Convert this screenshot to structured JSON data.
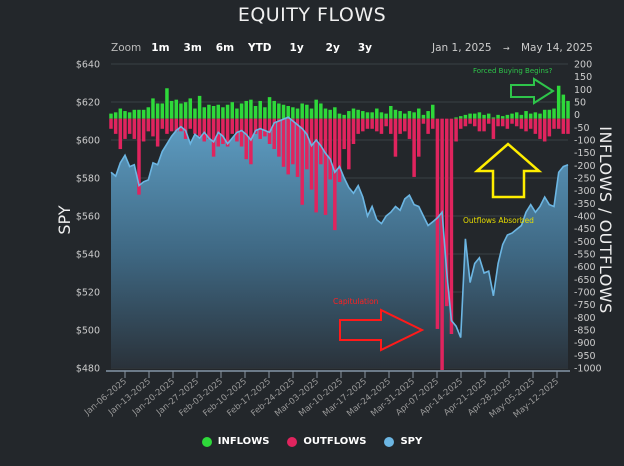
{
  "colors": {
    "inflows": "#2ed93a",
    "outflows": "#e0245e",
    "spy": "#6cb6e3",
    "background": "#23272b",
    "capitulation": "#ff2020",
    "absorbed": "#ffee00",
    "forced": "#2ec44a"
  },
  "toolbar": {
    "zoom_label": "Zoom",
    "buttons": [
      "1m",
      "3m",
      "6m",
      "YTD",
      "1y",
      "2y",
      "3y"
    ],
    "range_from": "Jan 1, 2025",
    "range_arrow": "→",
    "range_to": "May 14, 2025"
  },
  "legend": [
    {
      "label": "INFLOWS"
    },
    {
      "label": "OUTFLOWS"
    },
    {
      "label": "SPY"
    }
  ],
  "annotations": {
    "capitulation": "Capitulation",
    "absorbed": "Outflows Absorbed",
    "forced": "Forced Buying Begins?"
  },
  "chart_data": {
    "type": "bar+area",
    "title": "EQUITY FLOWS",
    "ylabel_left": "SPY",
    "ylabel_right": "INFLOWS / OUTFLOWS",
    "ylim_left": [
      480,
      640
    ],
    "yticks_left": [
      "$640",
      "$620",
      "$600",
      "$580",
      "$560",
      "$540",
      "$520",
      "$500",
      "$480"
    ],
    "ylim_right": [
      -1000,
      200
    ],
    "yticks_right": [
      "200",
      "150",
      "100",
      "50",
      "0",
      "-50",
      "-100",
      "-150",
      "-200",
      "-250",
      "-300",
      "-350",
      "-400",
      "-450",
      "-500",
      "-550",
      "-600",
      "-650",
      "-700",
      "-750",
      "-800",
      "-850",
      "-900",
      "-950",
      "-1000"
    ],
    "xticks": [
      "Jan-06-2025",
      "Jan-13-2025",
      "Jan-20-2025",
      "Jan-27-2025",
      "Feb-03-2025",
      "Feb-10-2025",
      "Feb-17-2025",
      "Feb-24-2025",
      "Mar-03-2025",
      "Mar-10-2025",
      "Mar-17-2025",
      "Mar-24-2025",
      "Mar-31-2025",
      "Apr-07-2025",
      "Apr-14-2025",
      "Apr-21-2025",
      "Apr-28-2025",
      "May-05-2025",
      "May-12-2025"
    ],
    "series": [
      {
        "name": "SPY",
        "values": [
          583,
          581,
          588,
          592,
          586,
          587,
          576,
          578,
          579,
          588,
          587,
          594,
          598,
          602,
          605,
          607,
          605,
          598,
          603,
          601,
          604,
          601,
          599,
          604,
          602,
          598,
          601,
          604,
          605,
          603,
          600,
          605,
          606,
          605,
          604,
          609,
          610,
          611,
          612,
          610,
          608,
          606,
          603,
          597,
          600,
          597,
          593,
          590,
          583,
          586,
          580,
          575,
          572,
          576,
          570,
          560,
          565,
          558,
          556,
          560,
          562,
          565,
          563,
          569,
          571,
          566,
          565,
          560,
          555,
          557,
          559,
          562,
          530,
          505,
          502,
          496,
          548,
          525,
          535,
          538,
          530,
          531,
          518,
          535,
          545,
          550,
          551,
          553,
          555,
          562,
          566,
          562,
          565,
          570,
          566,
          565,
          583,
          586,
          587
        ]
      },
      {
        "name": "INFLOWS",
        "values": [
          20,
          25,
          40,
          30,
          25,
          35,
          35,
          35,
          45,
          80,
          60,
          60,
          120,
          70,
          75,
          60,
          65,
          80,
          40,
          90,
          45,
          55,
          50,
          55,
          45,
          55,
          65,
          40,
          60,
          70,
          75,
          50,
          70,
          45,
          85,
          70,
          60,
          55,
          50,
          45,
          40,
          60,
          55,
          40,
          75,
          60,
          40,
          35,
          45,
          20,
          15,
          30,
          40,
          35,
          30,
          25,
          25,
          40,
          25,
          20,
          50,
          35,
          30,
          20,
          30,
          25,
          40,
          15,
          30,
          55,
          0,
          0,
          0,
          0,
          5,
          10,
          15,
          20,
          20,
          25,
          15,
          20,
          5,
          15,
          10,
          15,
          20,
          25,
          15,
          30,
          20,
          25,
          20,
          35,
          35,
          40,
          130,
          95,
          70
        ]
      },
      {
        "name": "OUTFLOWS",
        "values": [
          -40,
          -60,
          -120,
          -80,
          -60,
          -80,
          -300,
          -90,
          -50,
          -70,
          -110,
          -40,
          -60,
          -50,
          -50,
          -50,
          -80,
          -40,
          -60,
          -70,
          -90,
          -80,
          -150,
          -110,
          -100,
          -110,
          -60,
          -90,
          -110,
          -160,
          -180,
          -60,
          -80,
          -70,
          -100,
          -120,
          -150,
          -190,
          -220,
          -180,
          -230,
          -340,
          -200,
          -280,
          -370,
          -180,
          -380,
          -240,
          -440,
          -250,
          -120,
          -200,
          -100,
          -60,
          -50,
          -40,
          -40,
          -50,
          -60,
          -30,
          -60,
          -150,
          -60,
          -50,
          -80,
          -230,
          -150,
          -20,
          -60,
          -40,
          -830,
          -1000,
          -740,
          -850,
          -90,
          -40,
          -30,
          -20,
          -30,
          -50,
          -50,
          -20,
          -80,
          -30,
          -30,
          -40,
          -20,
          -30,
          -40,
          -50,
          -40,
          -60,
          -80,
          -90,
          -70,
          -40,
          -40,
          -60,
          -60
        ]
      }
    ],
    "legend_position": "bottom",
    "grid": true
  }
}
